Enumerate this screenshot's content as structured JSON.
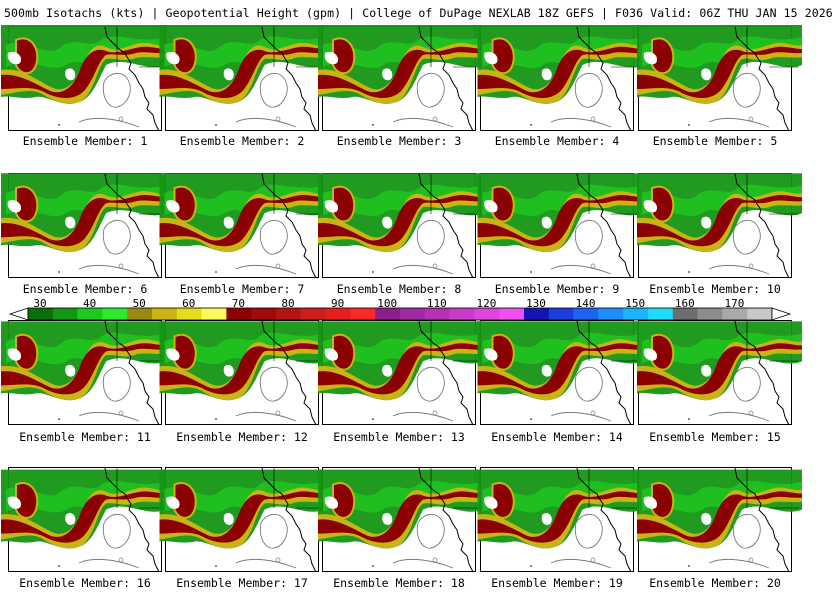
{
  "header": {
    "title": "500mb Isotachs (kts) | Geopotential Height (gpm) | College of DuPage NEXLAB   18Z GEFS | F036 Valid: 06Z THU JAN 15 2026"
  },
  "members": [
    {
      "label": "Ensemble Member: 1"
    },
    {
      "label": "Ensemble Member: 2"
    },
    {
      "label": "Ensemble Member: 3"
    },
    {
      "label": "Ensemble Member: 4"
    },
    {
      "label": "Ensemble Member: 5"
    },
    {
      "label": "Ensemble Member: 6"
    },
    {
      "label": "Ensemble Member: 7"
    },
    {
      "label": "Ensemble Member: 8"
    },
    {
      "label": "Ensemble Member: 9"
    },
    {
      "label": "Ensemble Member: 10"
    },
    {
      "label": "Ensemble Member: 11"
    },
    {
      "label": "Ensemble Member: 12"
    },
    {
      "label": "Ensemble Member: 13"
    },
    {
      "label": "Ensemble Member: 14"
    },
    {
      "label": "Ensemble Member: 15"
    },
    {
      "label": "Ensemble Member: 16"
    },
    {
      "label": "Ensemble Member: 17"
    },
    {
      "label": "Ensemble Member: 18"
    },
    {
      "label": "Ensemble Member: 19"
    },
    {
      "label": "Ensemble Member: 20"
    }
  ],
  "colorbar": {
    "ticks": [
      "30",
      "40",
      "50",
      "60",
      "70",
      "80",
      "90",
      "100",
      "110",
      "120",
      "130",
      "140",
      "150",
      "160",
      "170"
    ],
    "colors": [
      "#0b6e0b",
      "#149614",
      "#1ec81e",
      "#2ee82e",
      "#9a8a14",
      "#c8b414",
      "#e6dc1e",
      "#fafa5a",
      "#8b0000",
      "#a00a0a",
      "#b41414",
      "#cd1e1e",
      "#e61e1e",
      "#fa2a2a",
      "#8c1e8c",
      "#a028a0",
      "#b432b4",
      "#c83cc8",
      "#dc46dc",
      "#f050f0",
      "#1414b4",
      "#1e3cdc",
      "#1e64f0",
      "#1e8cfa",
      "#1eb4fa",
      "#1edcfa",
      "#6e6e6e",
      "#8c8c8c",
      "#aaaaaa",
      "#c8c8c8"
    ]
  },
  "map_colors": {
    "jet_core": "#8b0000",
    "jet_edge": "#c8b414",
    "wind_light": "#1ec81e",
    "wind_mid": "#149614",
    "coast": "#000000",
    "height_contour": "#7a7a7a"
  }
}
